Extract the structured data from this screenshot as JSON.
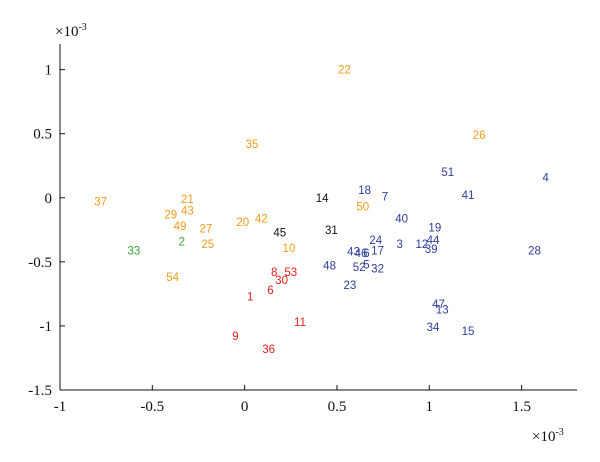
{
  "chart_data": {
    "type": "scatter",
    "title": "",
    "xlabel": "",
    "ylabel": "",
    "x_exponent": "×10",
    "x_exponent_power": "-3",
    "y_exponent": "×10",
    "y_exponent_power": "-3",
    "xlim": [
      -1,
      1.8
    ],
    "ylim": [
      -1.5,
      1.2
    ],
    "xticks": [
      -1,
      -0.5,
      0,
      0.5,
      1,
      1.5
    ],
    "xtick_labels": [
      "-1",
      "-0.5",
      "0",
      "0.5",
      "1",
      "1.5"
    ],
    "yticks": [
      -1.5,
      -1,
      -0.5,
      0,
      0.5,
      1
    ],
    "ytick_labels": [
      "-1.5",
      "-1",
      "-0.5",
      "0",
      "0.5",
      "1"
    ],
    "grid": false,
    "colors": {
      "orange": "#f59a1b",
      "blue": "#2e3d9c",
      "red": "#e8211c",
      "green": "#3aa83a",
      "black": "#111111"
    },
    "points": [
      {
        "label": "22",
        "x": 0.54,
        "y": 1.0,
        "color": "orange"
      },
      {
        "label": "35",
        "x": 0.04,
        "y": 0.42,
        "color": "orange"
      },
      {
        "label": "26",
        "x": 1.27,
        "y": 0.49,
        "color": "orange"
      },
      {
        "label": "37",
        "x": -0.78,
        "y": -0.03,
        "color": "orange"
      },
      {
        "label": "21",
        "x": -0.31,
        "y": -0.01,
        "color": "orange"
      },
      {
        "label": "43",
        "x": -0.31,
        "y": -0.1,
        "color": "orange"
      },
      {
        "label": "29",
        "x": -0.4,
        "y": -0.13,
        "color": "orange"
      },
      {
        "label": "49",
        "x": -0.35,
        "y": -0.22,
        "color": "orange"
      },
      {
        "label": "27",
        "x": -0.21,
        "y": -0.24,
        "color": "orange"
      },
      {
        "label": "20",
        "x": -0.01,
        "y": -0.19,
        "color": "orange"
      },
      {
        "label": "42",
        "x": 0.09,
        "y": -0.16,
        "color": "orange"
      },
      {
        "label": "50",
        "x": 0.64,
        "y": -0.07,
        "color": "orange"
      },
      {
        "label": "25",
        "x": -0.2,
        "y": -0.36,
        "color": "orange"
      },
      {
        "label": "10",
        "x": 0.24,
        "y": -0.39,
        "color": "orange"
      },
      {
        "label": "54",
        "x": -0.39,
        "y": -0.62,
        "color": "orange"
      },
      {
        "label": "2",
        "x": -0.34,
        "y": -0.34,
        "color": "green"
      },
      {
        "label": "33",
        "x": -0.6,
        "y": -0.41,
        "color": "green"
      },
      {
        "label": "14",
        "x": 0.42,
        "y": 0.0,
        "color": "black"
      },
      {
        "label": "45",
        "x": 0.19,
        "y": -0.27,
        "color": "black"
      },
      {
        "label": "31",
        "x": 0.47,
        "y": -0.25,
        "color": "black"
      },
      {
        "label": "4",
        "x": 1.63,
        "y": 0.16,
        "color": "blue"
      },
      {
        "label": "51",
        "x": 1.1,
        "y": 0.2,
        "color": "blue"
      },
      {
        "label": "41",
        "x": 1.21,
        "y": 0.02,
        "color": "blue"
      },
      {
        "label": "18",
        "x": 0.65,
        "y": 0.06,
        "color": "blue"
      },
      {
        "label": "7",
        "x": 0.76,
        "y": 0.01,
        "color": "blue"
      },
      {
        "label": "40",
        "x": 0.85,
        "y": -0.16,
        "color": "blue"
      },
      {
        "label": "19",
        "x": 1.03,
        "y": -0.23,
        "color": "blue"
      },
      {
        "label": "24",
        "x": 0.71,
        "y": -0.33,
        "color": "blue"
      },
      {
        "label": "3",
        "x": 0.84,
        "y": -0.36,
        "color": "blue"
      },
      {
        "label": "12",
        "x": 0.96,
        "y": -0.36,
        "color": "blue"
      },
      {
        "label": "44",
        "x": 1.02,
        "y": -0.33,
        "color": "blue"
      },
      {
        "label": "39",
        "x": 1.01,
        "y": -0.4,
        "color": "blue"
      },
      {
        "label": "28",
        "x": 1.57,
        "y": -0.41,
        "color": "blue"
      },
      {
        "label": "43",
        "x": 0.59,
        "y": -0.42,
        "color": "blue"
      },
      {
        "label": "46",
        "x": 0.63,
        "y": -0.43,
        "color": "blue"
      },
      {
        "label": "6",
        "x": 0.66,
        "y": -0.43,
        "color": "blue"
      },
      {
        "label": "17",
        "x": 0.72,
        "y": -0.41,
        "color": "blue"
      },
      {
        "label": "48",
        "x": 0.46,
        "y": -0.53,
        "color": "blue"
      },
      {
        "label": "52",
        "x": 0.62,
        "y": -0.54,
        "color": "blue"
      },
      {
        "label": "5",
        "x": 0.66,
        "y": -0.52,
        "color": "blue"
      },
      {
        "label": "32",
        "x": 0.72,
        "y": -0.55,
        "color": "blue"
      },
      {
        "label": "23",
        "x": 0.57,
        "y": -0.68,
        "color": "blue"
      },
      {
        "label": "47",
        "x": 1.05,
        "y": -0.83,
        "color": "blue"
      },
      {
        "label": "13",
        "x": 1.07,
        "y": -0.87,
        "color": "blue"
      },
      {
        "label": "34",
        "x": 1.02,
        "y": -1.01,
        "color": "blue"
      },
      {
        "label": "15",
        "x": 1.21,
        "y": -1.04,
        "color": "blue"
      },
      {
        "label": "8",
        "x": 0.16,
        "y": -0.58,
        "color": "red"
      },
      {
        "label": "53",
        "x": 0.25,
        "y": -0.58,
        "color": "red"
      },
      {
        "label": "30",
        "x": 0.2,
        "y": -0.64,
        "color": "red"
      },
      {
        "label": "6",
        "x": 0.14,
        "y": -0.72,
        "color": "red"
      },
      {
        "label": "1",
        "x": 0.03,
        "y": -0.77,
        "color": "red"
      },
      {
        "label": "11",
        "x": 0.3,
        "y": -0.97,
        "color": "red"
      },
      {
        "label": "9",
        "x": -0.05,
        "y": -1.08,
        "color": "red"
      },
      {
        "label": "36",
        "x": 0.13,
        "y": -1.18,
        "color": "red"
      }
    ]
  }
}
